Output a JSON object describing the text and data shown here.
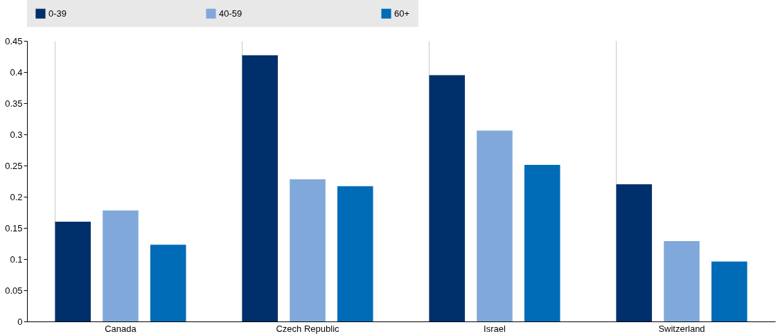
{
  "chart_data": {
    "type": "bar",
    "categories": [
      "Canada",
      "Czech Republic",
      "Israel",
      "Switzerland"
    ],
    "series": [
      {
        "name": "0-39",
        "color": "#00306b",
        "values": [
          0.16,
          0.427,
          0.395,
          0.22
        ]
      },
      {
        "name": "40-59",
        "color": "#80a8da",
        "values": [
          0.178,
          0.228,
          0.306,
          0.129
        ]
      },
      {
        "name": "60+",
        "color": "#006bb6",
        "values": [
          0.123,
          0.217,
          0.251,
          0.096
        ]
      }
    ],
    "ylim": [
      0,
      0.45
    ],
    "yticks": [
      0,
      0.05,
      0.1,
      0.15,
      0.2,
      0.25,
      0.3,
      0.35,
      0.4,
      0.45
    ],
    "grid": "x",
    "legend": "top"
  }
}
